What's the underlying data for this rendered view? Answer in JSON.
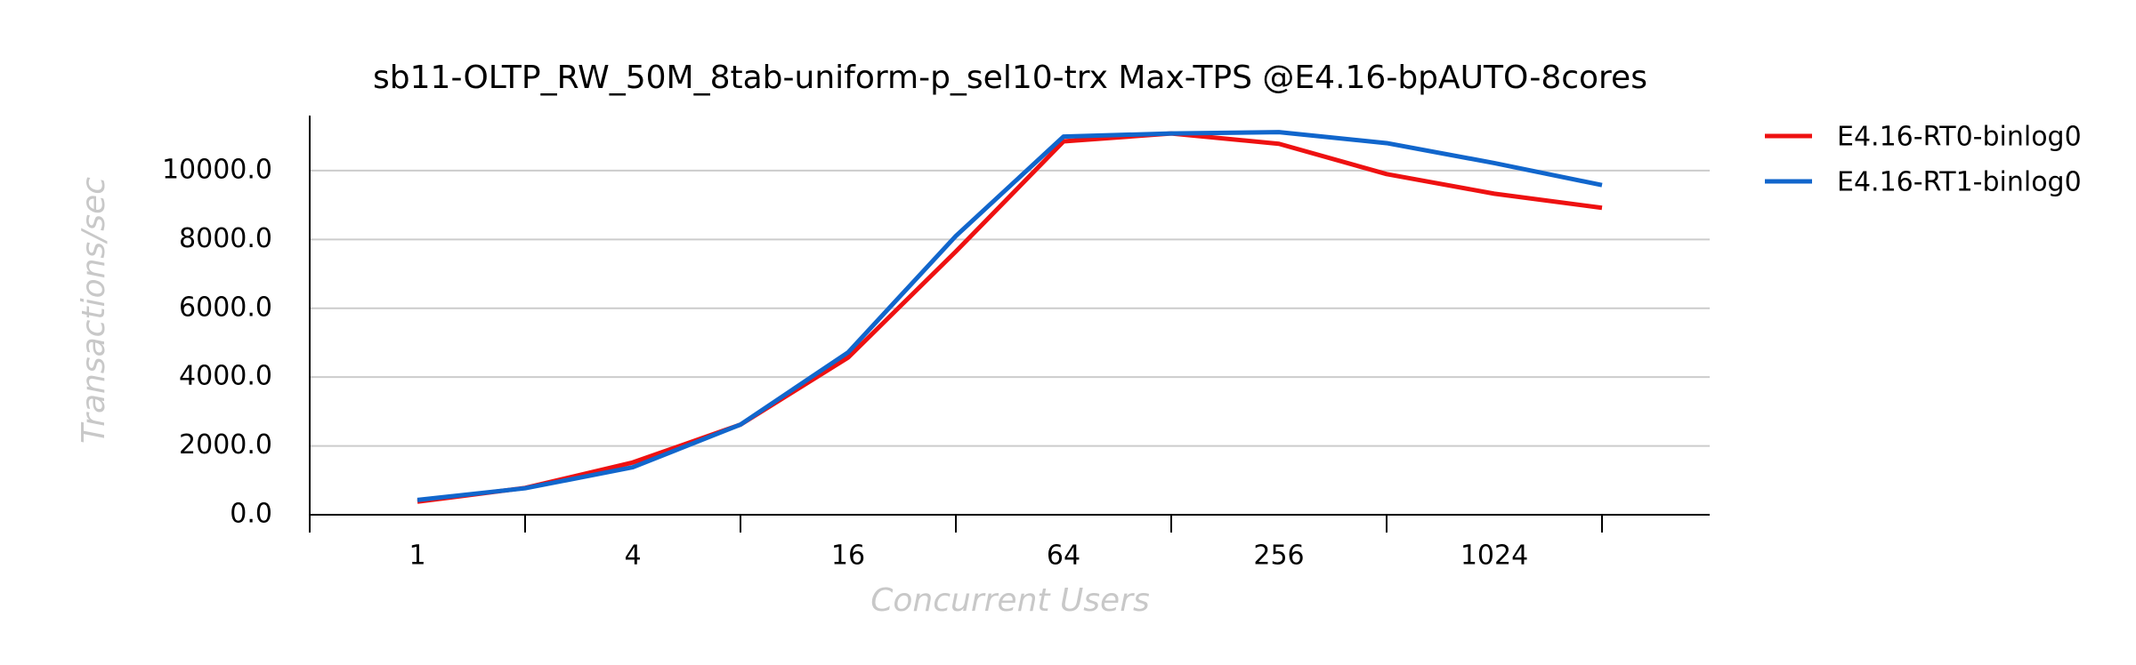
{
  "chart_data": {
    "type": "line",
    "title": "sb11-OLTP_RW_50M_8tab-uniform-p_sel10-trx Max-TPS @E4.16-bpAUTO-8cores",
    "x_label": "Concurrent Users",
    "y_label": "Transactions/sec",
    "x": [
      1,
      2,
      4,
      8,
      16,
      32,
      64,
      128,
      256,
      512,
      1024,
      2048
    ],
    "x_log_base": 2,
    "series": [
      {
        "name": "E4.16-RT0-binlog0",
        "color": "#ee1111",
        "values": [
          380,
          780,
          1520,
          2620,
          4570,
          7650,
          10850,
          11080,
          10780,
          9900,
          9330,
          8920
        ]
      },
      {
        "name": "E4.16-RT1-binlog0",
        "color": "#1166cc",
        "values": [
          430,
          770,
          1380,
          2620,
          4720,
          8100,
          10990,
          11080,
          11120,
          10800,
          10220,
          9580
        ]
      }
    ],
    "xlim": [
      0.5,
      4096
    ],
    "xticks": [
      1,
      4,
      16,
      64,
      256,
      1024
    ],
    "xminor_ticks": [
      0.5,
      2,
      8,
      32,
      128,
      512,
      2048
    ],
    "ylim": [
      0,
      11600
    ],
    "yticks": [
      {
        "value": 0,
        "label": "0.0"
      },
      {
        "value": 2000,
        "label": "2000.0"
      },
      {
        "value": 4000,
        "label": "4000.0"
      },
      {
        "value": 6000,
        "label": "6000.0"
      },
      {
        "value": 8000,
        "label": "8000.0"
      },
      {
        "value": 10000,
        "label": "10000.0"
      }
    ],
    "grid": true,
    "legend": "outside-right"
  }
}
